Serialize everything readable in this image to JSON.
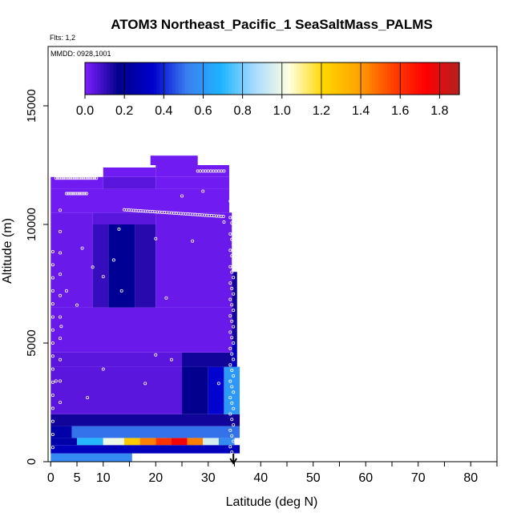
{
  "chart_data": {
    "type": "heatmap",
    "title": "ATOM3 Northeast_Pacific_1 SeaSaltMass_PALMS",
    "flights_label": "Flts: 1,2",
    "dates_label": "MMDD: 0928,1001",
    "xlabel": "Latitude (deg N)",
    "ylabel": "Altitude (m)",
    "xlim": [
      -0.5,
      85
    ],
    "ylim": [
      0,
      17500
    ],
    "xticks_major": [
      0,
      5,
      10,
      20,
      30,
      40,
      50,
      60,
      70,
      80
    ],
    "xticks_minor": [
      15,
      25,
      35,
      45,
      55,
      65,
      75,
      85
    ],
    "yticks": [
      0,
      5000,
      10000,
      15000
    ],
    "colorbar": {
      "min": 0.0,
      "max": 1.9,
      "tick_labels": [
        "0.0",
        "0.2",
        "0.4",
        "0.6",
        "0.8",
        "1.0",
        "1.2",
        "1.4",
        "1.6",
        "1.8"
      ],
      "tick_values": [
        0.0,
        0.2,
        0.4,
        0.6,
        0.8,
        1.0,
        1.2,
        1.4,
        1.6,
        1.8
      ],
      "colors": [
        "#7f1fff",
        "#00008b",
        "#0000cd",
        "#3a7ff0",
        "#1eb4ff",
        "#a9dcff",
        "#ffffe0",
        "#ffd700",
        "#ffa500",
        "#ff4500",
        "#ff0000",
        "#b22222"
      ]
    },
    "marker_latitude": 34.8,
    "cells": [
      {
        "lat": [
          0,
          15.5
        ],
        "alt": [
          0,
          350
        ],
        "v": 0.55
      },
      {
        "lat": [
          0,
          36
        ],
        "alt": [
          350,
          700
        ],
        "v": 0.3
      },
      {
        "lat": [
          5,
          10
        ],
        "alt": [
          700,
          1000
        ],
        "v": 0.7
      },
      {
        "lat": [
          10,
          14
        ],
        "alt": [
          700,
          1000
        ],
        "v": 1.0
      },
      {
        "lat": [
          14,
          17
        ],
        "alt": [
          700,
          1000
        ],
        "v": 1.25
      },
      {
        "lat": [
          17,
          20
        ],
        "alt": [
          700,
          1000
        ],
        "v": 1.45
      },
      {
        "lat": [
          20,
          23
        ],
        "alt": [
          700,
          1000
        ],
        "v": 1.6
      },
      {
        "lat": [
          23,
          26
        ],
        "alt": [
          700,
          1000
        ],
        "v": 1.75
      },
      {
        "lat": [
          26,
          29
        ],
        "alt": [
          700,
          1000
        ],
        "v": 1.45
      },
      {
        "lat": [
          29,
          32
        ],
        "alt": [
          700,
          1000
        ],
        "v": 0.95
      },
      {
        "lat": [
          32,
          35
        ],
        "alt": [
          700,
          1000
        ],
        "v": 0.55
      },
      {
        "lat": [
          0,
          5
        ],
        "alt": [
          700,
          1000
        ],
        "v": 0.25
      },
      {
        "lat": [
          0,
          4
        ],
        "alt": [
          1000,
          1500
        ],
        "v": 0.25
      },
      {
        "lat": [
          4,
          36
        ],
        "alt": [
          1000,
          1500
        ],
        "v": 0.5
      },
      {
        "lat": [
          0,
          36
        ],
        "alt": [
          1500,
          2000
        ],
        "v": 0.15
      },
      {
        "lat": [
          0,
          25
        ],
        "alt": [
          2000,
          4000
        ],
        "v": 0.05
      },
      {
        "lat": [
          25,
          30
        ],
        "alt": [
          2000,
          4000
        ],
        "v": 0.17
      },
      {
        "lat": [
          30,
          33
        ],
        "alt": [
          2000,
          4000
        ],
        "v": 0.35
      },
      {
        "lat": [
          33,
          36
        ],
        "alt": [
          2000,
          4000
        ],
        "v": 0.6
      },
      {
        "lat": [
          0,
          25
        ],
        "alt": [
          4000,
          4600
        ],
        "v": 0.05
      },
      {
        "lat": [
          25,
          34.5
        ],
        "alt": [
          4000,
          4600
        ],
        "v": 0.15
      },
      {
        "lat": [
          34.5,
          35.5
        ],
        "alt": [
          4000,
          5000
        ],
        "v": 0.3
      },
      {
        "lat": [
          0,
          34.5
        ],
        "alt": [
          4600,
          6500
        ],
        "v": 0.03
      },
      {
        "lat": [
          34.5,
          35.5
        ],
        "alt": [
          5000,
          8000
        ],
        "v": 0.15
      },
      {
        "lat": [
          0,
          8
        ],
        "alt": [
          6500,
          10500
        ],
        "v": 0.03
      },
      {
        "lat": [
          8,
          11
        ],
        "alt": [
          6500,
          10000
        ],
        "v": 0.1
      },
      {
        "lat": [
          11,
          16
        ],
        "alt": [
          6500,
          10000
        ],
        "v": 0.2
      },
      {
        "lat": [
          16,
          20
        ],
        "alt": [
          6500,
          10000
        ],
        "v": 0.12
      },
      {
        "lat": [
          20,
          34.5
        ],
        "alt": [
          6500,
          10500
        ],
        "v": 0.03
      },
      {
        "lat": [
          8,
          20
        ],
        "alt": [
          10000,
          10500
        ],
        "v": 0.05
      },
      {
        "lat": [
          0,
          34
        ],
        "alt": [
          10500,
          11500
        ],
        "v": 0.02
      },
      {
        "lat": [
          0,
          10
        ],
        "alt": [
          11500,
          12000
        ],
        "v": 0.02
      },
      {
        "lat": [
          10,
          20
        ],
        "alt": [
          11500,
          12000
        ],
        "v": 0.05
      },
      {
        "lat": [
          20,
          34
        ],
        "alt": [
          11500,
          12000
        ],
        "v": 0.02
      },
      {
        "lat": [
          10,
          20
        ],
        "alt": [
          12000,
          12400
        ],
        "v": 0.02
      },
      {
        "lat": [
          20,
          34
        ],
        "alt": [
          12000,
          12500
        ],
        "v": 0.02
      },
      {
        "lat": [
          19,
          28
        ],
        "alt": [
          12500,
          12900
        ],
        "v": 0.02
      }
    ]
  }
}
